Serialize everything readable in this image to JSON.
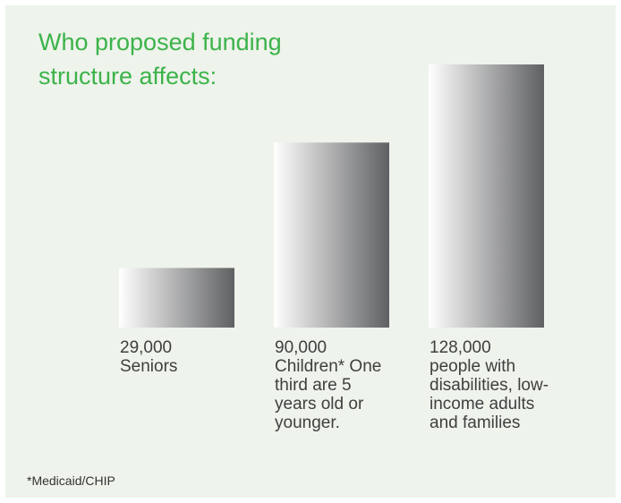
{
  "title": "Who proposed funding structure affects:",
  "footnote": "*Medicaid/CHIP",
  "colors": {
    "background": "#eef3eb",
    "title": "#3cb34a",
    "bar_light": "#ffffff",
    "bar_dark": "#5f6062"
  },
  "chart_data": {
    "type": "bar",
    "title": "Who proposed funding structure affects:",
    "categories": [
      "Seniors",
      "Children*",
      "people with disabilities, low-income adults and families"
    ],
    "values": [
      29000,
      90000,
      128000
    ],
    "ylim": [
      0,
      128000
    ],
    "grid": false,
    "legend": "none",
    "xlabel": "",
    "ylabel": "",
    "data_labels": [
      {
        "value": "29,000",
        "text": "Seniors"
      },
      {
        "value": "90,000",
        "text": "Children* One third are 5 years old or younger."
      },
      {
        "value": "128,000",
        "text": "people with disabilities, low-income adults and families"
      }
    ]
  }
}
